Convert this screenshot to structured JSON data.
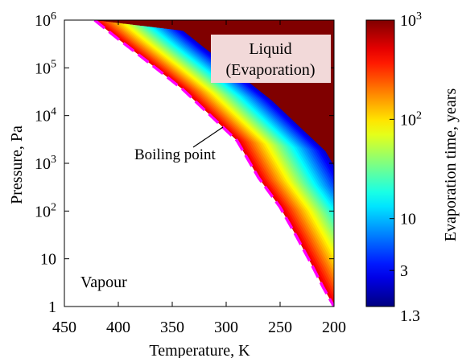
{
  "chart_data": {
    "type": "heatmap",
    "title": "",
    "xlabel": "Temperature, K",
    "ylabel": "Pressure, Pa",
    "x_axis": {
      "range": [
        450,
        200
      ],
      "direction": "reversed",
      "ticks": [
        450,
        400,
        350,
        300,
        250,
        200
      ],
      "tick_labels": [
        "450",
        "400",
        "350",
        "300",
        "250",
        "200"
      ]
    },
    "y_axis": {
      "scale": "log",
      "range": [
        1,
        1000000
      ],
      "ticks": [
        1,
        10,
        100,
        1000,
        10000,
        100000,
        1000000
      ],
      "tick_labels": [
        {
          "base": "1",
          "exp": ""
        },
        {
          "base": "10",
          "exp": ""
        },
        {
          "base": "10",
          "exp": "2"
        },
        {
          "base": "10",
          "exp": "3"
        },
        {
          "base": "10",
          "exp": "4"
        },
        {
          "base": "10",
          "exp": "5"
        },
        {
          "base": "10",
          "exp": "6"
        }
      ]
    },
    "boiling_curve": {
      "label": "Boiling point",
      "color": "#ff00ff",
      "style": "dashed",
      "points": [
        {
          "x": 422,
          "y": 1000000
        },
        {
          "x": 400,
          "y": 400000
        },
        {
          "x": 370,
          "y": 120000
        },
        {
          "x": 340,
          "y": 35000
        },
        {
          "x": 310,
          "y": 8000
        },
        {
          "x": 290,
          "y": 3000
        },
        {
          "x": 270,
          "y": 500
        },
        {
          "x": 250,
          "y": 120
        },
        {
          "x": 235,
          "y": 30
        },
        {
          "x": 220,
          "y": 7
        },
        {
          "x": 210,
          "y": 2.5
        },
        {
          "x": 200,
          "y": 1
        }
      ]
    },
    "region_labels": {
      "liquid_line1": "Liquid",
      "liquid_line2": "(Evaporation)",
      "vapour": "Vapour",
      "boiling_point": "Boiling point"
    },
    "colorbar": {
      "label": "Evaporation time, years",
      "scale": "log",
      "range": [
        1.3,
        1000
      ],
      "colormap": "jet",
      "ticks": [
        {
          "value": 1000,
          "base": "10",
          "exp": "3"
        },
        {
          "value": 100,
          "base": "10",
          "exp": "2"
        },
        {
          "value": 10,
          "base": "10",
          "exp": ""
        },
        {
          "value": 3,
          "base": "3",
          "exp": ""
        },
        {
          "value": 1.3,
          "base": "1.3",
          "exp": ""
        }
      ]
    },
    "colors": {
      "liquid_saturated": "#800000",
      "vapour_region": "#ffffff",
      "label_box": "#f2d9d9"
    }
  }
}
